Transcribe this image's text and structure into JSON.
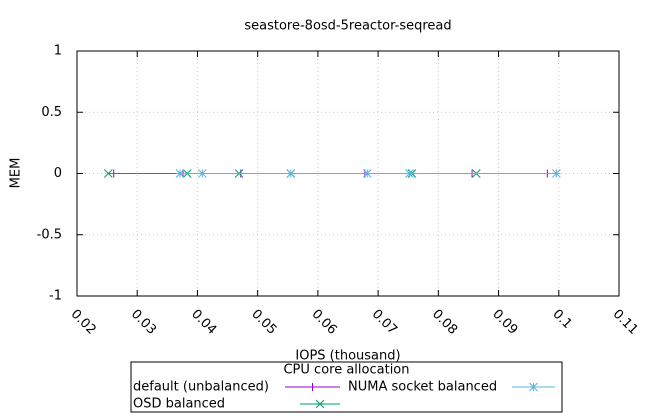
{
  "chart_data": {
    "type": "line",
    "title": "seastore-8osd-5reactor-seqread",
    "xlabel": "IOPS (thousand)",
    "ylabel": "MEM",
    "legend_title": "CPU core allocation",
    "legend": "bottom",
    "grid": true,
    "xlim": [
      0.02,
      0.11
    ],
    "xticks": [
      0.02,
      0.03,
      0.04,
      0.05,
      0.06,
      0.07,
      0.08,
      0.09,
      0.1,
      0.11
    ],
    "ylim": [
      -1,
      1
    ],
    "yticks": [
      -1,
      -0.5,
      0,
      0.5,
      1
    ],
    "series": [
      {
        "name": "default (unbalanced)",
        "color": "#9400d3",
        "marker": "plus",
        "x": [
          0.0261,
          0.0376,
          0.0472,
          0.0678,
          0.0856,
          0.0981
        ],
        "values": [
          0,
          0,
          0,
          0,
          0,
          0
        ]
      },
      {
        "name": "OSD balanced",
        "color": "#009e73",
        "marker": "cross",
        "x": [
          0.0252,
          0.0383,
          0.0469,
          0.0555,
          0.0756,
          0.0863
        ],
        "values": [
          0,
          0,
          0,
          0,
          0,
          0
        ]
      },
      {
        "name": "NUMA socket balanced",
        "color": "#56b4e9",
        "marker": "star",
        "x": [
          0.0371,
          0.0408,
          0.0555,
          0.0682,
          0.0752,
          0.0996
        ],
        "values": [
          0,
          0,
          0,
          0,
          0,
          0
        ]
      }
    ]
  }
}
